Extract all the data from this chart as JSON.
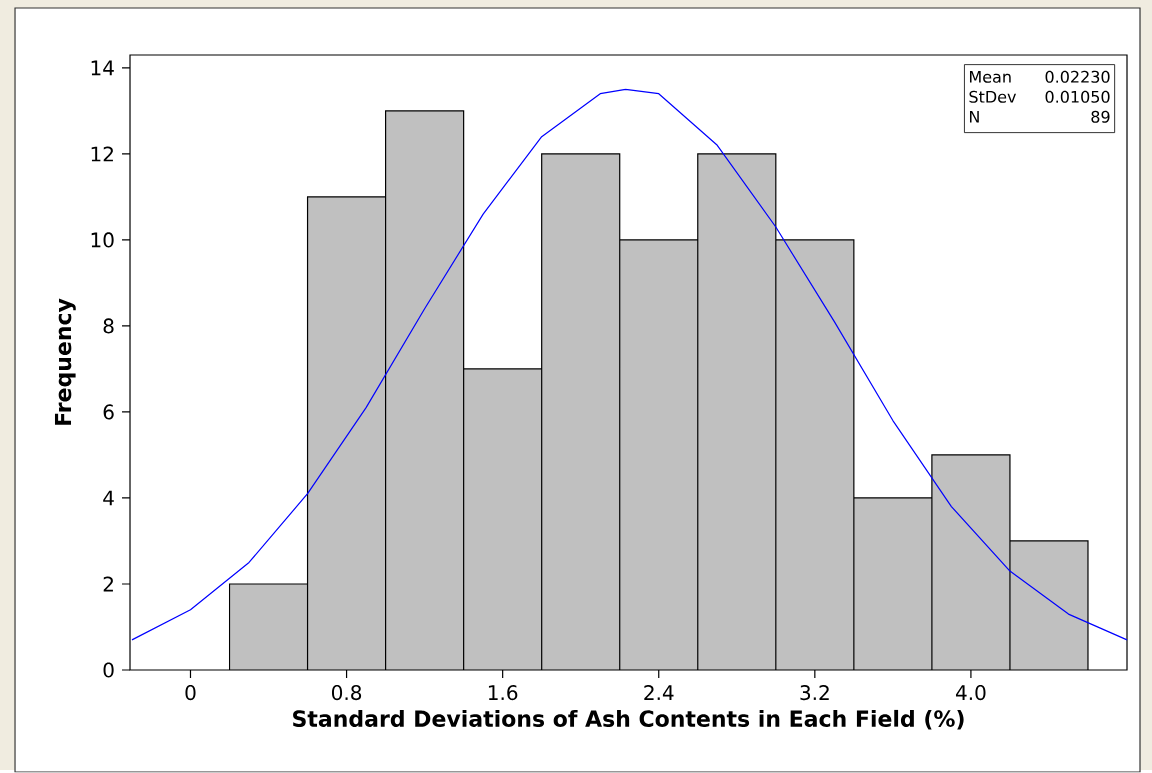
{
  "chart_data": {
    "type": "histogram",
    "xlabel": "Standard Deviations of Ash Contents in Each Field (%)",
    "ylabel": "Frequency",
    "bins": [
      0.2,
      0.6,
      1.0,
      1.4,
      1.8,
      2.2,
      2.6,
      3.0,
      3.4,
      3.8,
      4.2,
      4.6
    ],
    "values": [
      2,
      11,
      13,
      7,
      12,
      10,
      12,
      10,
      4,
      5,
      3
    ],
    "color": "#c0c0c0",
    "series": [
      {
        "type": "line",
        "color": "#0000ff",
        "x": [
          -0.3,
          0,
          0.3,
          0.6,
          0.9,
          1.2,
          1.5,
          1.8,
          2.1,
          2.23,
          2.4,
          2.7,
          3.0,
          3.3,
          3.6,
          3.9,
          4.2,
          4.5,
          4.8
        ],
        "values": [
          0.7,
          1.4,
          2.5,
          4.1,
          6.1,
          8.4,
          10.6,
          12.4,
          13.4,
          13.5,
          13.4,
          12.2,
          10.3,
          8.1,
          5.8,
          3.8,
          2.3,
          1.3,
          0.7
        ]
      }
    ],
    "xlim": [
      -0.31,
      4.8
    ],
    "ylim": [
      0,
      14.3
    ],
    "xticks": [
      0,
      0.8,
      1.6,
      2.4,
      3.2,
      {
        "value": 4.0,
        "label": "4.0"
      }
    ],
    "yticks": [
      0,
      2,
      4,
      6,
      8,
      10,
      12,
      14
    ],
    "annotations": [
      "Mean",
      "0.02230",
      "StDev",
      "0.01050",
      "N",
      "89"
    ]
  }
}
